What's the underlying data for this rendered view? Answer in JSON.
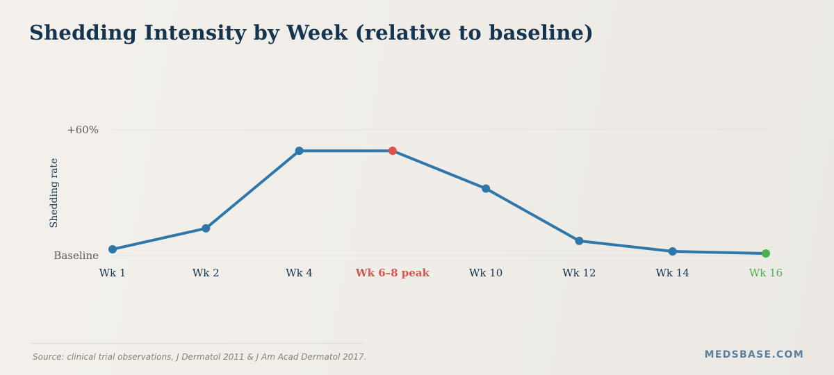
{
  "colors": {
    "title": "#14344f",
    "line": "#2e77aa",
    "peak": "#d9534f",
    "end": "#4caf50",
    "grid": "#dfe3e8",
    "axis_text": "#5a5a5a",
    "tick_text": "#14344f"
  },
  "chart_data": {
    "type": "line",
    "title": "Shedding Intensity by Week (relative to baseline)",
    "xlabel": "",
    "ylabel": "Shedding rate",
    "categories": [
      "Wk 1",
      "Wk 2",
      "Wk 4",
      "Wk 6–8 peak",
      "Wk 10",
      "Wk 12",
      "Wk 14",
      "Wk 16"
    ],
    "values": [
      3,
      13,
      50,
      50,
      32,
      7,
      2,
      1
    ],
    "ylim": [
      0,
      60
    ],
    "yticks": [
      {
        "value": 60,
        "label": "+60%"
      },
      {
        "value": 0,
        "label": "Baseline"
      }
    ],
    "highlights": [
      {
        "index": 3,
        "role": "peak"
      },
      {
        "index": 7,
        "role": "end"
      }
    ],
    "grid": true
  },
  "footer": {
    "source": "Source: clinical trial observations, J Dermatol 2011 & J Am Acad Dermatol 2017.",
    "brand": "MEDSBASE.COM"
  }
}
